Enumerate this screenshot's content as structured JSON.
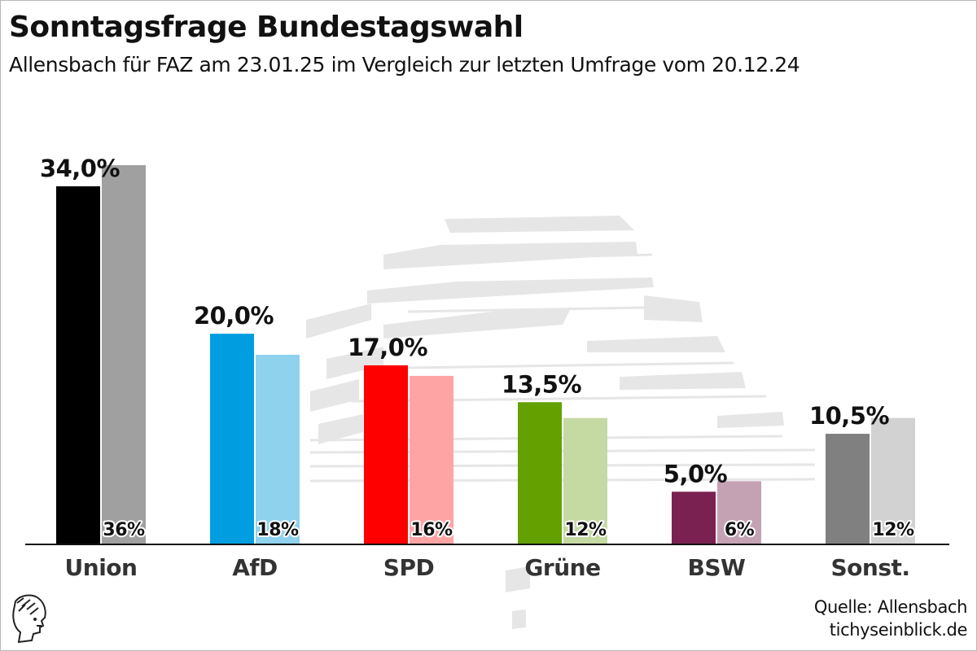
{
  "chart_data": {
    "type": "bar",
    "title": "Sonntagsfrage Bundestagswahl",
    "subtitle": "Allensbach für FAZ am 23.01.25 im Vergleich zur letzten Umfrage vom 20.12.24",
    "categories": [
      "Union",
      "AfD",
      "SPD",
      "Grüne",
      "BSW",
      "Sonst."
    ],
    "series": [
      {
        "values": [
          34.0,
          20.0,
          17.0,
          13.5,
          5.0,
          10.5
        ],
        "labels": [
          "34,0%",
          "20,0%",
          "17,0%",
          "13,5%",
          "5,0%",
          "10,5%"
        ],
        "colors": [
          "#000000",
          "#009ee0",
          "#ff0000",
          "#64a000",
          "#7b2151",
          "#808080"
        ]
      },
      {
        "values": [
          36,
          18,
          16,
          12,
          6,
          12
        ],
        "labels": [
          "36%",
          "18%",
          "16%",
          "12%",
          "6%",
          "12%"
        ],
        "colors": [
          "#a0a0a0",
          "#8fd2ee",
          "#ffa4a4",
          "#c5d9a3",
          "#c5a1b4",
          "#d2d2d2"
        ]
      }
    ],
    "ylim": [
      0,
      36
    ],
    "grid": false,
    "legend": "none"
  },
  "footer": {
    "source": "Quelle: Allensbach",
    "site": "tichyseinblick.de"
  },
  "icons": {
    "logo": "tichys-einblick-logo-icon",
    "background": "reichstag-dome-watermark-icon"
  }
}
